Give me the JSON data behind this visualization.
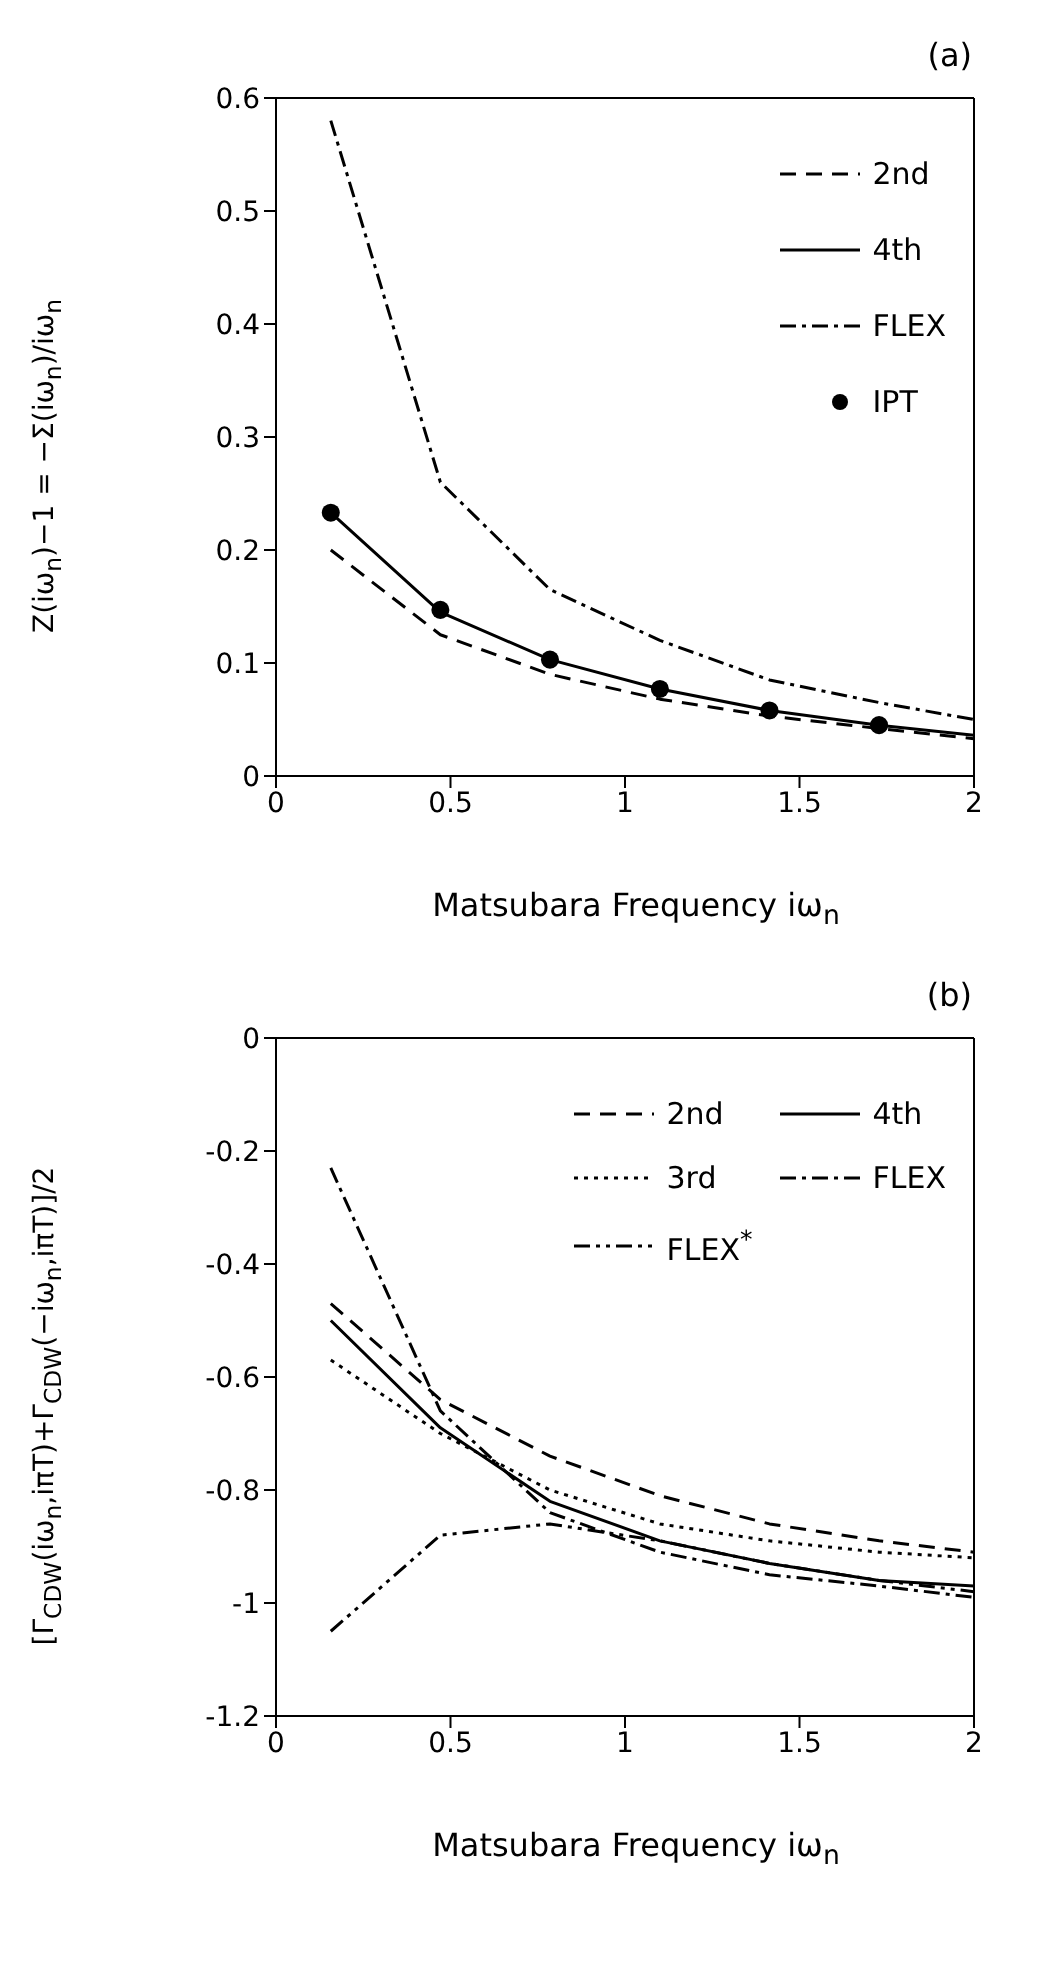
{
  "chart_data": [
    {
      "type": "line",
      "title": "(a)",
      "xlabel": "Matsubara Frequency iω$_{n}$",
      "ylabel": "Z(iω$_{n}$)−1 = −Σ(iω$_{n}$)/iω$_{n}$",
      "x": [
        0.157,
        0.471,
        0.785,
        1.1,
        1.414,
        1.728,
        2
      ],
      "xlim": [
        0,
        2
      ],
      "xticks": [
        0,
        0.5,
        1,
        1.5,
        2
      ],
      "ylim": [
        0,
        0.6
      ],
      "yticks": [
        0,
        0.1,
        0.2,
        0.3,
        0.4,
        0.5,
        0.6
      ],
      "legend": "top right",
      "series": [
        {
          "name": "2nd",
          "color": "#000000",
          "line_style": "dashed",
          "values": [
            0.2,
            0.125,
            0.09,
            0.068,
            0.053,
            0.042,
            0.033
          ]
        },
        {
          "name": "4th",
          "color": "#000000",
          "line_style": "solid",
          "values": [
            0.233,
            0.145,
            0.103,
            0.077,
            0.058,
            0.045,
            0.036
          ]
        },
        {
          "name": "FLEX",
          "color": "#000000",
          "line_style": "dashdot",
          "values": [
            0.58,
            0.26,
            0.165,
            0.12,
            0.085,
            0.065,
            0.05
          ]
        },
        {
          "name": "IPT",
          "type": "scatter",
          "marker": "circle",
          "color": "#000000",
          "x": [
            0.157,
            0.471,
            0.785,
            1.1,
            1.414,
            1.728
          ],
          "values": [
            0.233,
            0.147,
            0.103,
            0.077,
            0.058,
            0.045
          ]
        }
      ]
    },
    {
      "type": "line",
      "title": "(b)",
      "xlabel": "Matsubara Frequency iω$_{n}$",
      "ylabel": "[Γ$_{CDW}$(iω$_{n}$,iπT)+Γ$_{CDW}$(−iω$_{n}$,iπT)]/2",
      "x": [
        0.157,
        0.471,
        0.785,
        1.1,
        1.414,
        1.728,
        2
      ],
      "xlim": [
        0,
        2
      ],
      "xticks": [
        0,
        0.5,
        1,
        1.5,
        2
      ],
      "ylim": [
        -1.2,
        0
      ],
      "yticks": [
        -1.2,
        -1,
        -0.8,
        -0.6,
        -0.4,
        -0.2,
        0
      ],
      "legend": "top right",
      "series": [
        {
          "name": "2nd",
          "color": "#000000",
          "line_style": "dashed",
          "values": [
            -0.47,
            -0.64,
            -0.74,
            -0.81,
            -0.86,
            -0.89,
            -0.91
          ]
        },
        {
          "name": "4th",
          "color": "#000000",
          "line_style": "solid",
          "values": [
            -0.5,
            -0.69,
            -0.82,
            -0.89,
            -0.93,
            -0.96,
            -0.97
          ]
        },
        {
          "name": "3rd",
          "color": "#000000",
          "line_style": "dotted",
          "values": [
            -0.57,
            -0.7,
            -0.8,
            -0.86,
            -0.89,
            -0.91,
            -0.92
          ]
        },
        {
          "name": "FLEX",
          "color": "#000000",
          "line_style": "dashdot",
          "values": [
            -0.23,
            -0.66,
            -0.84,
            -0.91,
            -0.95,
            -0.97,
            -0.99
          ]
        },
        {
          "name": "FLEX$^{*}$",
          "color": "#000000",
          "line_style": "dashdotdot",
          "values": [
            -1.05,
            -0.88,
            -0.86,
            -0.89,
            -0.93,
            -0.96,
            -0.98
          ]
        }
      ]
    }
  ]
}
